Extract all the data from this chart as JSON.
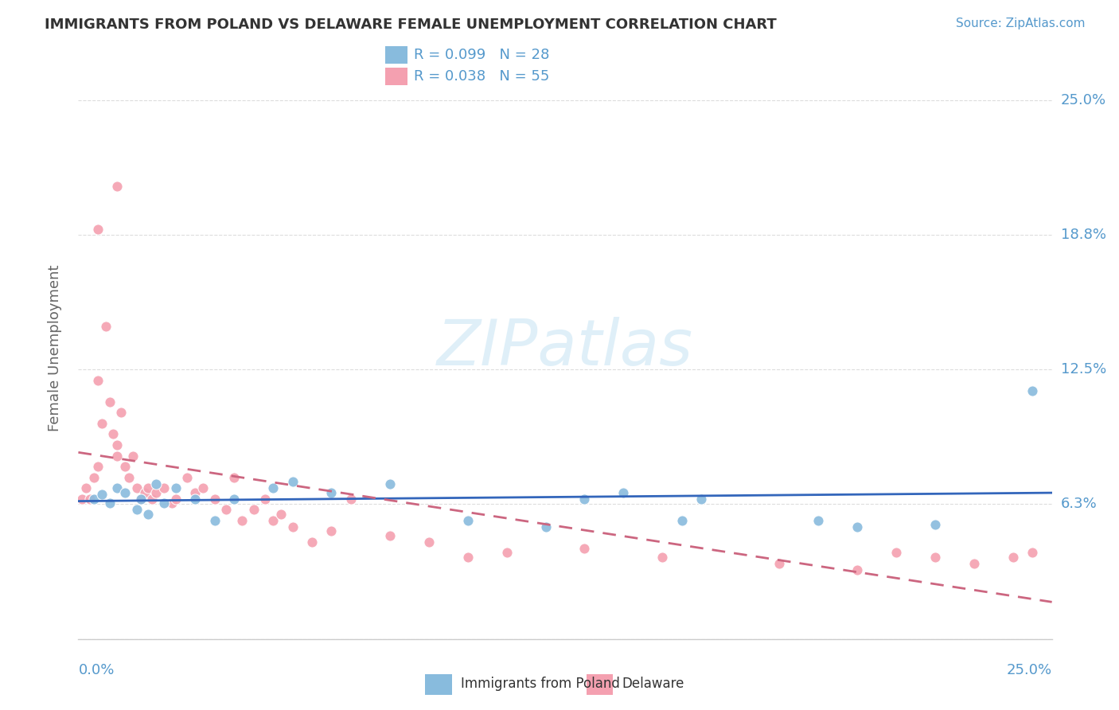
{
  "title": "IMMIGRANTS FROM POLAND VS DELAWARE FEMALE UNEMPLOYMENT CORRELATION CHART",
  "source": "Source: ZipAtlas.com",
  "ylabel": "Female Unemployment",
  "yticks": [
    0.0,
    0.0625,
    0.125,
    0.1875,
    0.25
  ],
  "ytick_labels": [
    "",
    "6.3%",
    "12.5%",
    "18.8%",
    "25.0%"
  ],
  "xtick_left": "0.0%",
  "xtick_right": "25.0%",
  "xlim": [
    0.0,
    0.25
  ],
  "ylim": [
    0.0,
    0.27
  ],
  "series1_label": "Immigrants from Poland",
  "series1_color": "#88bbdd",
  "series1_R": "0.099",
  "series1_N": "28",
  "series2_label": "Delaware",
  "series2_color": "#f4a0b0",
  "series2_R": "0.038",
  "series2_N": "55",
  "title_color": "#333333",
  "axis_color": "#5599cc",
  "watermark_color": "#dceef8",
  "series1_x": [
    0.004,
    0.006,
    0.008,
    0.01,
    0.012,
    0.015,
    0.016,
    0.018,
    0.02,
    0.022,
    0.025,
    0.03,
    0.035,
    0.04,
    0.05,
    0.055,
    0.065,
    0.08,
    0.1,
    0.12,
    0.13,
    0.14,
    0.155,
    0.16,
    0.19,
    0.2,
    0.22,
    0.245
  ],
  "series1_y": [
    0.065,
    0.067,
    0.063,
    0.07,
    0.068,
    0.06,
    0.065,
    0.058,
    0.072,
    0.063,
    0.07,
    0.065,
    0.055,
    0.065,
    0.07,
    0.073,
    0.068,
    0.072,
    0.055,
    0.052,
    0.065,
    0.068,
    0.055,
    0.065,
    0.055,
    0.052,
    0.053,
    0.115
  ],
  "series2_x": [
    0.001,
    0.002,
    0.003,
    0.004,
    0.005,
    0.005,
    0.006,
    0.007,
    0.008,
    0.009,
    0.01,
    0.01,
    0.011,
    0.012,
    0.013,
    0.014,
    0.015,
    0.016,
    0.017,
    0.018,
    0.019,
    0.02,
    0.022,
    0.024,
    0.025,
    0.028,
    0.03,
    0.032,
    0.035,
    0.038,
    0.04,
    0.042,
    0.045,
    0.048,
    0.05,
    0.052,
    0.055,
    0.06,
    0.065,
    0.07,
    0.08,
    0.09,
    0.1,
    0.11,
    0.13,
    0.15,
    0.18,
    0.2,
    0.21,
    0.22,
    0.23,
    0.24,
    0.245,
    0.01,
    0.005
  ],
  "series2_y": [
    0.065,
    0.07,
    0.065,
    0.075,
    0.12,
    0.08,
    0.1,
    0.145,
    0.11,
    0.095,
    0.085,
    0.09,
    0.105,
    0.08,
    0.075,
    0.085,
    0.07,
    0.065,
    0.068,
    0.07,
    0.065,
    0.068,
    0.07,
    0.063,
    0.065,
    0.075,
    0.068,
    0.07,
    0.065,
    0.06,
    0.075,
    0.055,
    0.06,
    0.065,
    0.055,
    0.058,
    0.052,
    0.045,
    0.05,
    0.065,
    0.048,
    0.045,
    0.038,
    0.04,
    0.042,
    0.038,
    0.035,
    0.032,
    0.04,
    0.038,
    0.035,
    0.038,
    0.04,
    0.21,
    0.19
  ]
}
